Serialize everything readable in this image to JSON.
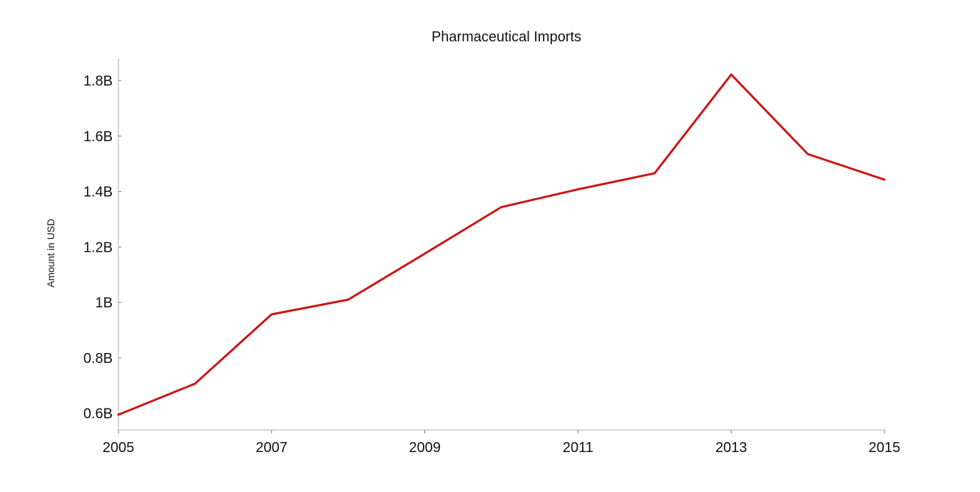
{
  "chart_data": {
    "type": "line",
    "title": "Pharmaceutical Imports",
    "xlabel": "",
    "ylabel": "Amount in USD",
    "x": [
      2005,
      2006,
      2007,
      2008,
      2009,
      2010,
      2011,
      2012,
      2013,
      2014,
      2015
    ],
    "xticks": [
      2005,
      2007,
      2009,
      2011,
      2013,
      2015
    ],
    "xtick_labels": [
      "2005",
      "2007",
      "2009",
      "2011",
      "2013",
      "2015"
    ],
    "xlim": [
      2005,
      2015
    ],
    "yticks": [
      0.6,
      0.8,
      1.0,
      1.2,
      1.4,
      1.6,
      1.8
    ],
    "ytick_labels": [
      "0.6B",
      "0.8B",
      "1B",
      "1.2B",
      "1.4B",
      "1.6B",
      "1.8B"
    ],
    "ylim": [
      0.54,
      1.88
    ],
    "yunit": "billion USD",
    "grid": false,
    "legend": "none",
    "series": [
      {
        "values": [
          0.595,
          0.707,
          0.957,
          1.01,
          1.176,
          1.344,
          1.408,
          1.466,
          1.822,
          1.535,
          1.443
        ],
        "color": "#cc1414"
      }
    ]
  }
}
